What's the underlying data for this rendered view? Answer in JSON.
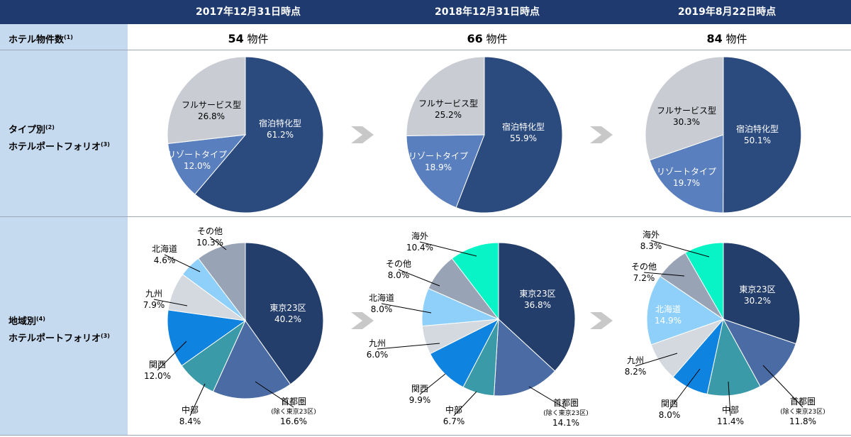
{
  "header": {
    "dates": [
      "2017年12月31日時点",
      "2018年12月31日時点",
      "2019年8月22日時点"
    ]
  },
  "rows": {
    "count_label": "ホテル物件数",
    "count_note": "(1)",
    "type_label_line1": "タイプ別",
    "type_note1": "(2)",
    "type_label_line2": "ホテルポートフォリオ",
    "type_note2": "(3)",
    "region_label_line1": "地域別",
    "region_note1": "(4)",
    "region_label_line2": "ホテルポートフォリオ",
    "region_note2": "(3)"
  },
  "counts": [
    {
      "value": "54",
      "unit": "物件"
    },
    {
      "value": "66",
      "unit": "物件"
    },
    {
      "value": "84",
      "unit": "物件"
    }
  ],
  "colors": {
    "header_bg": "#1e3a6e",
    "label_bg": "#c5d9ef",
    "arrow": "#c8c8c8",
    "type": {
      "宿泊特化型": "#2b4a7e",
      "リゾートタイプ": "#5a7fbe",
      "フルサービス型": "#c9ccd3"
    },
    "region": {
      "東京23区": "#243e6b",
      "首都圏": "#4a6ba3",
      "中部": "#3a9aa7",
      "関西": "#0f83e0",
      "九州": "#d4d8df",
      "北海道": "#8fd0fb",
      "その他": "#98a3b6",
      "海外": "#08f3c6"
    }
  },
  "chart_data": [
    {
      "type": "pie",
      "title": "2017年12月31日時点 タイプ別",
      "labels": [
        "宿泊特化型",
        "リゾートタイプ",
        "フルサービス型"
      ],
      "values": [
        61.2,
        12.0,
        26.8
      ],
      "display": [
        "61.2%",
        "12.0%",
        "26.8%"
      ]
    },
    {
      "type": "pie",
      "title": "2018年12月31日時点 タイプ別",
      "labels": [
        "宿泊特化型",
        "リゾートタイプ",
        "フルサービス型"
      ],
      "values": [
        55.9,
        18.9,
        25.2
      ],
      "display": [
        "55.9%",
        "18.9%",
        "25.2%"
      ]
    },
    {
      "type": "pie",
      "title": "2019年8月22日時点 タイプ別",
      "labels": [
        "宿泊特化型",
        "リゾートタイプ",
        "フルサービス型"
      ],
      "values": [
        50.1,
        19.7,
        30.3
      ],
      "display": [
        "50.1%",
        "19.7%",
        "30.3%"
      ]
    },
    {
      "type": "pie",
      "title": "2017年12月31日時点 地域別",
      "labels": [
        "東京23区",
        "首都圏",
        "中部",
        "関西",
        "九州",
        "北海道",
        "その他"
      ],
      "values": [
        40.2,
        16.6,
        8.4,
        12.0,
        7.9,
        4.6,
        10.3
      ],
      "display": [
        "40.2%",
        "16.6%",
        "8.4%",
        "12.0%",
        "7.9%",
        "4.6%",
        "10.3%"
      ],
      "notes": {
        "首都圏": "(除く東京23区)"
      }
    },
    {
      "type": "pie",
      "title": "2018年12月31日時点 地域別",
      "labels": [
        "東京23区",
        "首都圏",
        "中部",
        "関西",
        "九州",
        "北海道",
        "その他",
        "海外"
      ],
      "values": [
        36.8,
        14.1,
        6.7,
        9.9,
        6.0,
        8.0,
        8.0,
        10.4
      ],
      "display": [
        "36.8%",
        "14.1%",
        "6.7%",
        "9.9%",
        "6.0%",
        "8.0%",
        "8.0%",
        "10.4%"
      ],
      "notes": {
        "首都圏": "(除く東京23区)"
      }
    },
    {
      "type": "pie",
      "title": "2019年8月22日時点 地域別",
      "labels": [
        "東京23区",
        "首都圏",
        "中部",
        "関西",
        "九州",
        "北海道",
        "その他",
        "海外"
      ],
      "values": [
        30.2,
        11.8,
        11.4,
        8.0,
        8.2,
        14.9,
        7.2,
        8.3
      ],
      "display": [
        "30.2%",
        "11.8%",
        "11.4%",
        "8.0%",
        "8.2%",
        "14.9%",
        "7.2%",
        "8.3%"
      ],
      "notes": {
        "首都圏": "(除く東京23区)"
      }
    }
  ]
}
